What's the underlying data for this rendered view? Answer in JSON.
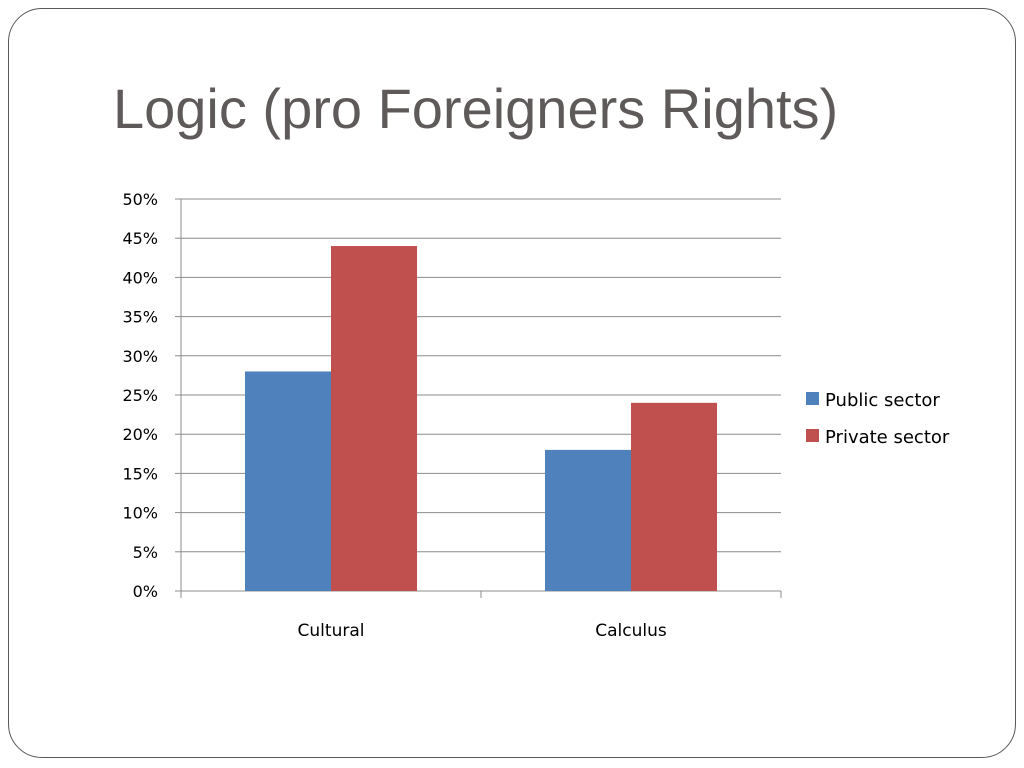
{
  "slide": {
    "title": "Logic (pro Foreigners Rights)"
  },
  "chart_data": {
    "type": "bar",
    "title": "",
    "xlabel": "",
    "ylabel": "",
    "categories": [
      "Cultural",
      "Calculus"
    ],
    "series": [
      {
        "name": "Public sector",
        "values": [
          28,
          18
        ],
        "color": "#4f81bd"
      },
      {
        "name": "Private sector",
        "values": [
          44,
          24
        ],
        "color": "#c0504d"
      }
    ],
    "ylim": [
      0,
      50
    ],
    "ytick_step": 5,
    "ytick_format": "percent",
    "grid": true,
    "legend": "right"
  }
}
